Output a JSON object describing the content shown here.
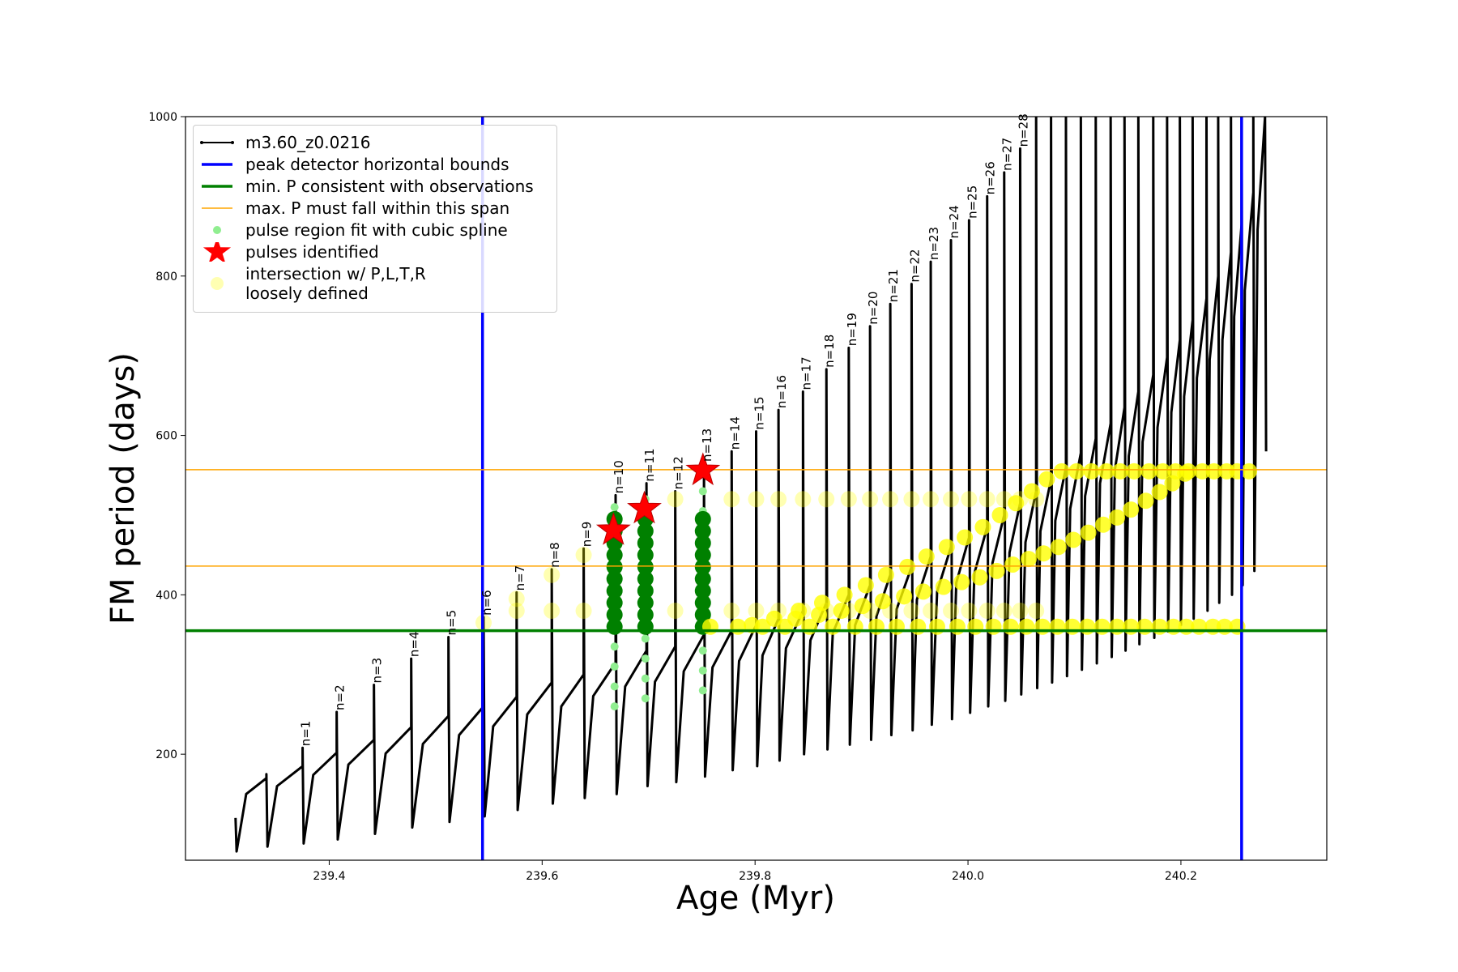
{
  "chart_data": {
    "type": "line",
    "xlabel": "Age (Myr)",
    "ylabel": "FM period (days)",
    "xlim": [
      239.265,
      240.337
    ],
    "ylim": [
      67,
      1000
    ],
    "xticks": [
      239.4,
      239.6,
      239.8,
      {
        "value": 240,
        "label": "240.0"
      },
      240.2
    ],
    "yticks": [
      200,
      400,
      600,
      800,
      1000
    ],
    "grid": false,
    "legend": "upper left",
    "series": [
      {
        "name": "m3.60_z0.0216",
        "color": "#000000",
        "marker": "line",
        "x": [
          239.312,
          239.313,
          239.322,
          239.341,
          239.341,
          239.342,
          239.351,
          239.375,
          239.375,
          239.376,
          239.385,
          239.407,
          239.407,
          239.408,
          239.418,
          239.442,
          239.442,
          239.443,
          239.453,
          239.477,
          239.477,
          239.478,
          239.488,
          239.512,
          239.512,
          239.513,
          239.522,
          239.545,
          239.545,
          239.546,
          239.554,
          239.576,
          239.576,
          239.577,
          239.586,
          239.609,
          239.609,
          239.61,
          239.618,
          239.639,
          239.639,
          239.64,
          239.648,
          239.669,
          239.669,
          239.67,
          239.678,
          239.698,
          239.698,
          239.699,
          239.706,
          239.725,
          239.725,
          239.726,
          239.733,
          239.752,
          239.752,
          239.753,
          239.76,
          239.778,
          239.778,
          239.779,
          239.785,
          239.801,
          239.801,
          239.802,
          239.807,
          239.822,
          239.822,
          239.823,
          239.829,
          239.845,
          239.845,
          239.846,
          239.852,
          239.867,
          239.867,
          239.868,
          239.873,
          239.888,
          239.888,
          239.889,
          239.894,
          239.908,
          239.908,
          239.909,
          239.914,
          239.927,
          239.927,
          239.928,
          239.933,
          239.947,
          239.947,
          239.948,
          239.952,
          239.965,
          239.965,
          239.966,
          239.971,
          239.984,
          239.984,
          239.985,
          239.989,
          240.001,
          240.001,
          240.002,
          240.006,
          240.018,
          240.018,
          240.019,
          240.023,
          240.034,
          240.034,
          240.035,
          240.039,
          240.049,
          240.049,
          240.05,
          240.054,
          240.064,
          240.064,
          240.065,
          240.068,
          240.078,
          240.078,
          240.079,
          240.082,
          240.092,
          240.092,
          240.093,
          240.096,
          240.106,
          240.106,
          240.107,
          240.11,
          240.12,
          240.12,
          240.121,
          240.124,
          240.134,
          240.134,
          240.135,
          240.138,
          240.147,
          240.147,
          240.148,
          240.151,
          240.16,
          240.16,
          240.161,
          240.164,
          240.174,
          240.174,
          240.175,
          240.178,
          240.187,
          240.187,
          240.188,
          240.191,
          240.199,
          240.199,
          240.2,
          240.203,
          240.211,
          240.211,
          240.212,
          240.215,
          240.224,
          240.224,
          240.225,
          240.227,
          240.235,
          240.235,
          240.236,
          240.239,
          240.247,
          240.247,
          240.248,
          240.25,
          240.257,
          240.257,
          240.258,
          240.26,
          240.268,
          240.268,
          240.269,
          240.272,
          240.279,
          240.28
        ],
        "values": [
          120,
          78,
          150,
          170,
          175,
          84,
          160,
          185,
          208,
          88,
          174,
          202,
          253,
          93,
          187,
          218,
          287,
          100,
          201,
          234,
          320,
          108,
          213,
          248,
          347,
          115,
          224,
          260,
          372,
          122,
          235,
          272,
          403,
          130,
          250,
          290,
          432,
          138,
          260,
          300,
          458,
          145,
          273,
          315,
          525,
          150,
          285,
          330,
          540,
          160,
          291,
          335,
          530,
          165,
          304,
          350,
          565,
          172,
          309,
          355,
          580,
          180,
          317,
          362,
          605,
          185,
          324,
          370,
          632,
          192,
          333,
          380,
          655,
          200,
          343,
          390,
          683,
          206,
          352,
          400,
          710,
          212,
          362,
          412,
          737,
          218,
          373,
          425,
          765,
          224,
          382,
          435,
          790,
          230,
          394,
          448,
          818,
          237,
          404,
          460,
          845,
          244,
          415,
          472,
          870,
          252,
          427,
          485,
          900,
          260,
          440,
          500,
          930,
          267,
          453,
          515,
          960,
          275,
          466,
          530,
          1000,
          283,
          480,
          545,
          1000,
          290,
          493,
          560,
          1000,
          298,
          508,
          578,
          1000,
          306,
          524,
          596,
          1000,
          314,
          540,
          615,
          1000,
          322,
          557,
          635,
          1000,
          330,
          574,
          655,
          1000,
          338,
          592,
          676,
          1000,
          346,
          610,
          698,
          1000,
          354,
          629,
          720,
          1000,
          362,
          649,
          745,
          1000,
          370,
          672,
          772,
          1000,
          380,
          695,
          800,
          1000,
          390,
          720,
          830,
          1000,
          400,
          749,
          865,
          1000,
          412,
          782,
          905,
          1000,
          430,
          858,
          1000,
          580
        ]
      },
      {
        "name": "pulse region fit with cubic spline",
        "color": "#90ee90",
        "marker": "dot",
        "x": [
          239.668,
          239.668,
          239.668,
          239.668,
          239.668,
          239.668,
          239.668,
          239.668,
          239.668,
          239.668,
          239.668,
          239.697,
          239.697,
          239.697,
          239.697,
          239.697,
          239.697,
          239.697,
          239.697,
          239.697,
          239.697,
          239.697,
          239.751,
          239.751,
          239.751,
          239.751,
          239.751,
          239.751,
          239.751,
          239.751,
          239.751,
          239.751,
          239.751
        ],
        "values": [
          260,
          285,
          310,
          335,
          360,
          385,
          410,
          435,
          460,
          485,
          510,
          270,
          295,
          320,
          345,
          370,
          395,
          420,
          445,
          470,
          495,
          520,
          280,
          305,
          330,
          355,
          380,
          405,
          430,
          455,
          480,
          505,
          530
        ]
      },
      {
        "color": "#008000",
        "marker": "big-dot",
        "x": [
          239.668,
          239.668,
          239.668,
          239.668,
          239.668,
          239.668,
          239.668,
          239.668,
          239.668,
          239.668,
          239.697,
          239.697,
          239.697,
          239.697,
          239.697,
          239.697,
          239.697,
          239.697,
          239.697,
          239.697,
          239.751,
          239.751,
          239.751,
          239.751,
          239.751,
          239.751,
          239.751,
          239.751,
          239.751,
          239.751
        ],
        "values": [
          360,
          375,
          390,
          405,
          420,
          435,
          450,
          465,
          480,
          495,
          360,
          375,
          390,
          405,
          420,
          435,
          450,
          465,
          480,
          495,
          360,
          375,
          390,
          405,
          420,
          435,
          450,
          465,
          480,
          495
        ]
      },
      {
        "name": "pulses identified",
        "color": "#ff0000",
        "marker": "star",
        "x": [
          239.667,
          239.696,
          239.751
        ],
        "values": [
          481,
          508,
          556
        ]
      },
      {
        "name": "intersection w/ P,L,T,R\nloosely defined",
        "color": "#ffff00",
        "marker": "big-dot",
        "alpha": 0.8,
        "x": [
          239.797,
          239.818,
          239.841,
          239.863,
          239.884,
          239.904,
          239.923,
          239.943,
          239.961,
          239.98,
          239.997,
          240.014,
          240.03,
          240.045,
          240.06,
          240.074,
          240.088,
          240.102,
          240.116,
          240.13,
          240.143,
          240.156,
          240.17,
          240.183,
          240.195,
          240.207,
          240.22,
          240.231,
          240.243,
          240.253,
          240.264
        ],
        "values": [
          362,
          370,
          380,
          390,
          400,
          412,
          425,
          435,
          448,
          460,
          472,
          485,
          500,
          515,
          530,
          545,
          555,
          555,
          555,
          555,
          555,
          555,
          555,
          555,
          555,
          555,
          555,
          555,
          555,
          555,
          555
        ]
      },
      {
        "color": "#ffff00",
        "marker": "big-dot",
        "alpha": 0.8,
        "x": [
          239.758,
          239.784,
          239.807,
          239.828,
          239.851,
          239.873,
          239.894,
          239.914,
          239.933,
          239.953,
          239.971,
          239.99,
          240.007,
          240.024,
          240.04,
          240.055,
          240.07,
          240.084,
          240.098,
          240.112,
          240.126,
          240.14,
          240.153,
          240.166,
          240.18,
          240.193,
          240.205,
          240.217,
          240.23,
          240.241,
          240.253
        ],
        "values": [
          360,
          360,
          360,
          360,
          360,
          360,
          360,
          360,
          360,
          360,
          360,
          360,
          360,
          360,
          360,
          360,
          360,
          360,
          360,
          360,
          360,
          360,
          360,
          360,
          360,
          360,
          360,
          360,
          360,
          360,
          360
        ]
      },
      {
        "color": "#ffff00",
        "marker": "big-dot",
        "alpha": 0.8,
        "x": [
          239.838,
          239.86,
          239.881,
          239.901,
          239.92,
          239.94,
          239.958,
          239.977,
          239.994,
          240.011,
          240.027,
          240.042,
          240.057,
          240.071,
          240.085,
          240.099,
          240.113,
          240.127,
          240.14,
          240.153,
          240.167,
          240.18,
          240.192,
          240.204
        ],
        "values": [
          370,
          375,
          380,
          386,
          392,
          398,
          404,
          410,
          416,
          422,
          430,
          438,
          445,
          452,
          460,
          469,
          478,
          488,
          497,
          507,
          518,
          529,
          540,
          552
        ]
      },
      {
        "color": "#ffff00",
        "marker": "big-dot",
        "alpha": 0.3,
        "x": [
          239.545,
          239.576,
          239.576,
          239.609,
          239.609,
          239.639,
          239.639,
          239.725,
          239.725,
          239.778,
          239.778,
          239.801,
          239.801,
          239.822,
          239.822,
          239.845,
          239.845,
          239.867,
          239.867,
          239.888,
          239.888,
          239.908,
          239.908,
          239.927,
          239.927,
          239.947,
          239.947,
          239.965,
          239.965,
          239.984,
          239.984,
          240.001,
          240.001,
          240.018,
          240.018,
          240.034,
          240.034,
          240.049,
          240.049,
          240.064,
          240.064
        ],
        "values": [
          365,
          380,
          395,
          380,
          425,
          380,
          450,
          380,
          520,
          380,
          520,
          380,
          520,
          380,
          520,
          380,
          520,
          380,
          520,
          380,
          520,
          380,
          520,
          380,
          520,
          380,
          520,
          380,
          520,
          380,
          520,
          380,
          520,
          380,
          520,
          380,
          520,
          380,
          520,
          380,
          520
        ]
      }
    ],
    "reference_lines": [
      {
        "name": "peak detector horizontal bounds",
        "color": "#0000ff",
        "orientation": "vertical",
        "values": [
          239.544,
          240.257
        ]
      },
      {
        "name": "min. P consistent with observations",
        "color": "#008000",
        "orientation": "horizontal",
        "values": [
          355
        ]
      },
      {
        "name": "max. P must fall within this span",
        "color": "#ffa500",
        "orientation": "horizontal",
        "values": [
          436,
          557
        ]
      }
    ],
    "annotations": [
      {
        "text": "n=1",
        "x": 239.375,
        "y": 208
      },
      {
        "text": "n=2",
        "x": 239.407,
        "y": 253
      },
      {
        "text": "n=3",
        "x": 239.442,
        "y": 287
      },
      {
        "text": "n=4",
        "x": 239.477,
        "y": 320
      },
      {
        "text": "n=5",
        "x": 239.512,
        "y": 347
      },
      {
        "text": "n=6",
        "x": 239.545,
        "y": 372
      },
      {
        "text": "n=7",
        "x": 239.576,
        "y": 403
      },
      {
        "text": "n=8",
        "x": 239.609,
        "y": 432
      },
      {
        "text": "n=9",
        "x": 239.639,
        "y": 458
      },
      {
        "text": "n=10",
        "x": 239.669,
        "y": 525
      },
      {
        "text": "n=11",
        "x": 239.698,
        "y": 540
      },
      {
        "text": "n=12",
        "x": 239.725,
        "y": 530
      },
      {
        "text": "n=13",
        "x": 239.752,
        "y": 565
      },
      {
        "text": "n=14",
        "x": 239.778,
        "y": 580
      },
      {
        "text": "n=15",
        "x": 239.801,
        "y": 605
      },
      {
        "text": "n=16",
        "x": 239.822,
        "y": 632
      },
      {
        "text": "n=17",
        "x": 239.845,
        "y": 655
      },
      {
        "text": "n=18",
        "x": 239.867,
        "y": 683
      },
      {
        "text": "n=19",
        "x": 239.888,
        "y": 710
      },
      {
        "text": "n=20",
        "x": 239.908,
        "y": 737
      },
      {
        "text": "n=21",
        "x": 239.927,
        "y": 765
      },
      {
        "text": "n=22",
        "x": 239.947,
        "y": 790
      },
      {
        "text": "n=23",
        "x": 239.965,
        "y": 818
      },
      {
        "text": "n=24",
        "x": 239.984,
        "y": 845
      },
      {
        "text": "n=25",
        "x": 240.001,
        "y": 870
      },
      {
        "text": "n=26",
        "x": 240.018,
        "y": 900
      },
      {
        "text": "n=27",
        "x": 240.034,
        "y": 930
      },
      {
        "text": "n=28",
        "x": 240.049,
        "y": 960
      }
    ]
  }
}
